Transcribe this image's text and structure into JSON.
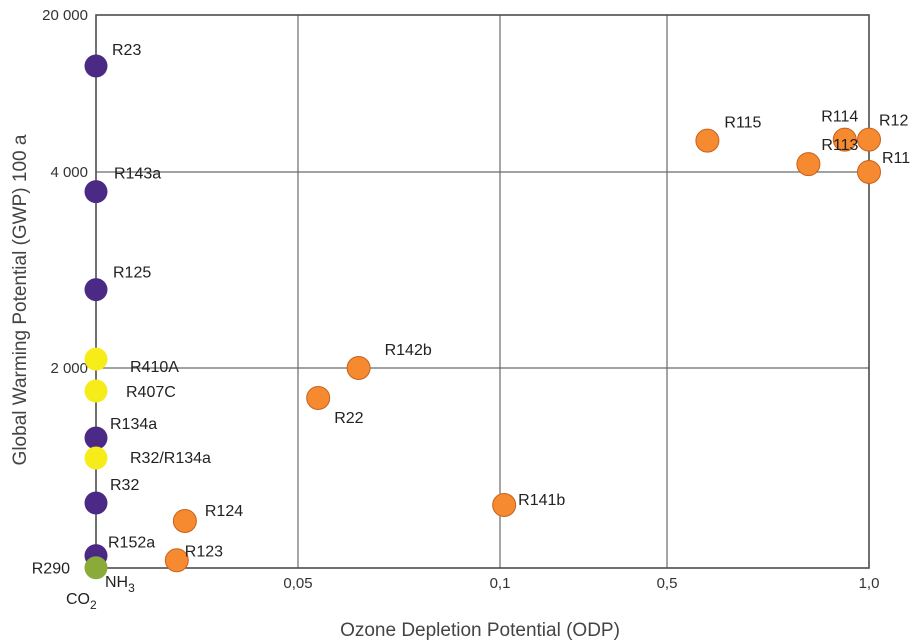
{
  "chart_data": {
    "type": "scatter",
    "title": "",
    "xlabel": "Ozone Depletion Potential (ODP)",
    "ylabel": "Global Warming Potential (GWP) 100 a",
    "x_scale": "piecewise, non-uniform (equal-width bands between ticks)",
    "y_scale": "piecewise, non-uniform (equal-height bands between ticks)",
    "x_ticks": [
      "0,05",
      "0,1",
      "0,5",
      "1,0"
    ],
    "x_tick_values": [
      0,
      0.05,
      0.1,
      0.5,
      1.0
    ],
    "y_ticks": [
      "2 000",
      "4 000",
      "20 000"
    ],
    "y_tick_values": [
      0,
      2000,
      4000,
      20000
    ],
    "xlim": [
      0,
      1.0
    ],
    "ylim": [
      0,
      20000
    ],
    "grid": true,
    "legend": "none",
    "colors": {
      "hfc": "#4a2a85",
      "blend": "#f5ec1a",
      "natural": "#8aab3a",
      "cfc_hcfc": "#f58a30"
    },
    "points": [
      {
        "label": "R23",
        "x": 0,
        "y": 14800,
        "group": "hfc"
      },
      {
        "label": "R143a",
        "x": 0,
        "y": 3800,
        "group": "hfc"
      },
      {
        "label": "R125",
        "x": 0,
        "y": 2800,
        "group": "hfc"
      },
      {
        "label": "R410A",
        "x": 0,
        "y": 2090,
        "group": "blend"
      },
      {
        "label": "R407C",
        "x": 0,
        "y": 1770,
        "group": "blend"
      },
      {
        "label": "R134a",
        "x": 0,
        "y": 1300,
        "group": "hfc"
      },
      {
        "label": "R32/R134a",
        "x": 0,
        "y": 1100,
        "group": "blend"
      },
      {
        "label": "R32",
        "x": 0,
        "y": 650,
        "group": "hfc"
      },
      {
        "label": "R152a",
        "x": 0,
        "y": 124,
        "group": "hfc"
      },
      {
        "label": "R290",
        "x": 0,
        "y": 3,
        "group": "natural"
      },
      {
        "label": "R124",
        "x": 0.022,
        "y": 470,
        "group": "cfc_hcfc"
      },
      {
        "label": "R123",
        "x": 0.02,
        "y": 77,
        "group": "cfc_hcfc"
      },
      {
        "label": "R22",
        "x": 0.055,
        "y": 1700,
        "group": "cfc_hcfc"
      },
      {
        "label": "R142b",
        "x": 0.065,
        "y": 2000,
        "group": "cfc_hcfc"
      },
      {
        "label": "R141b",
        "x": 0.11,
        "y": 630,
        "group": "cfc_hcfc"
      },
      {
        "label": "R115",
        "x": 0.6,
        "y": 7200,
        "group": "cfc_hcfc"
      },
      {
        "label": "R113",
        "x": 0.85,
        "y": 4800,
        "group": "cfc_hcfc"
      },
      {
        "label": "R114",
        "x": 0.94,
        "y": 7300,
        "group": "cfc_hcfc"
      },
      {
        "label": "R12",
        "x": 1.0,
        "y": 7300,
        "group": "cfc_hcfc"
      },
      {
        "label": "R11",
        "x": 1.0,
        "y": 4000,
        "group": "cfc_hcfc"
      }
    ],
    "annotations": {
      "nh3": "NH",
      "nh3_sub": "3",
      "co2": "CO",
      "co2_sub": "2"
    }
  }
}
